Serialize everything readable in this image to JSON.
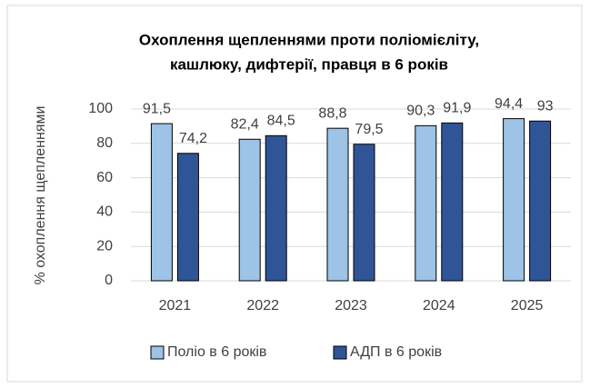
{
  "chart_data": {
    "type": "bar",
    "title": [
      "Охоплення щепленнями проти поліомієліту,",
      "кашлюку, дифтерії, правця в 6 років"
    ],
    "y_label": "% охоплення щепленнями",
    "categories": [
      "2021",
      "2022",
      "2023",
      "2024",
      "2025"
    ],
    "series": [
      {
        "name": "Поліо в 6 років",
        "color": "#9dc3e6",
        "values": [
          91.5,
          82.4,
          88.8,
          90.3,
          94.4
        ],
        "value_labels": [
          "91,5",
          "82,4",
          "88,8",
          "90,3",
          "94,4"
        ]
      },
      {
        "name": "АДП в 6 років",
        "color": "#2f5597",
        "values": [
          74.2,
          84.5,
          79.5,
          91.9,
          93
        ],
        "value_labels": [
          "74,2",
          "84,5",
          "79,5",
          "91,9",
          "93"
        ]
      }
    ],
    "ylim": [
      0,
      100
    ],
    "yticks": [
      0,
      20,
      40,
      60,
      80,
      100
    ],
    "grid": true,
    "legend": "bottom"
  }
}
